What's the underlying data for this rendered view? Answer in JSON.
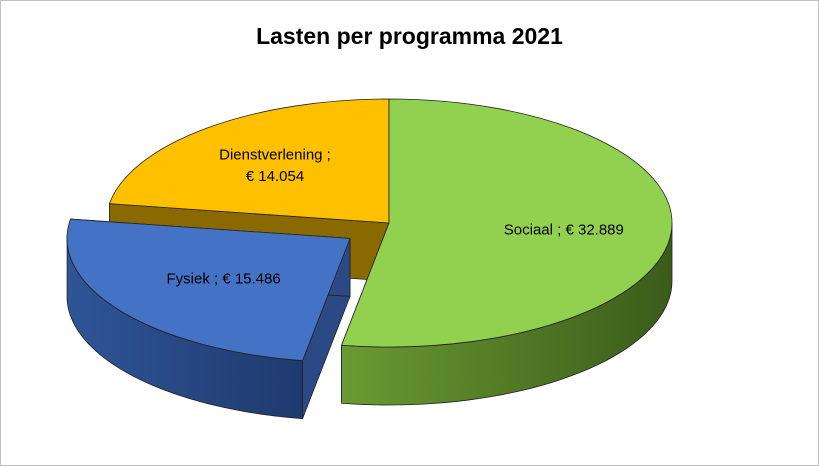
{
  "chart_data": {
    "type": "pie",
    "title": "Lasten per programma 2021",
    "three_d": true,
    "categories": [
      "Sociaal",
      "Fysiek",
      "Dienstverlening"
    ],
    "values": [
      32889,
      15486,
      14054
    ],
    "labels": [
      {
        "category": "Sociaal",
        "separator": " ;",
        "value_text": "€ 32.889"
      },
      {
        "category": "Fysiek",
        "separator": " ;",
        "value_text": "€ 15.486"
      },
      {
        "category": "Dienstverlening",
        "separator": " ;",
        "value_text": "€ 14.054"
      }
    ],
    "colors": [
      "#92d050",
      "#4472c4",
      "#ffc000"
    ],
    "exploded": [
      "Fysiek"
    ],
    "legend": "none"
  }
}
